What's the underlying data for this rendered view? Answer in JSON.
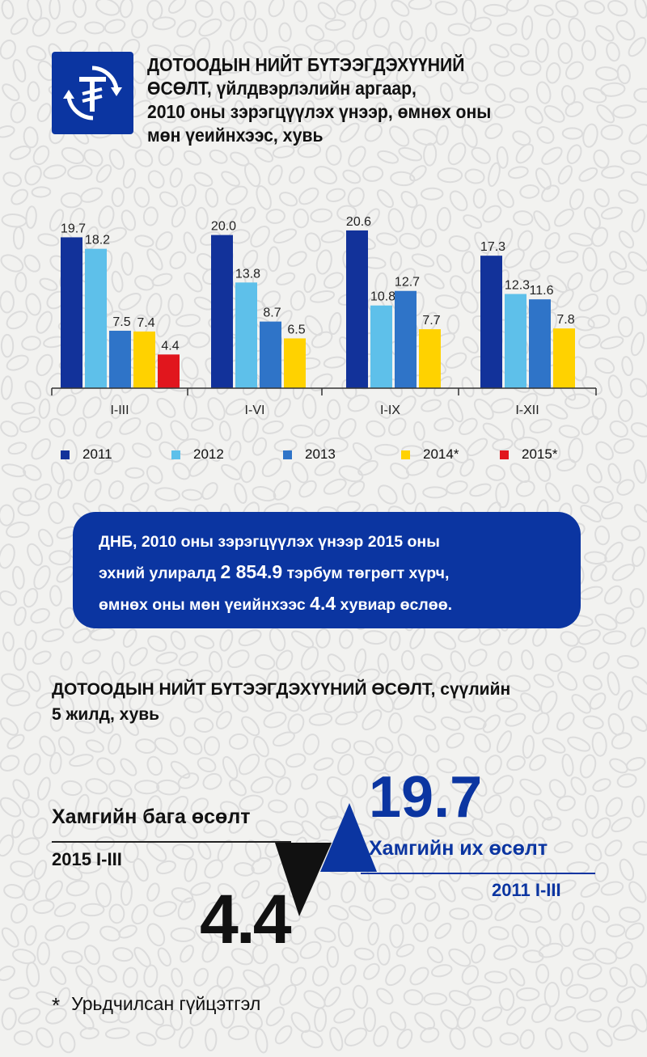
{
  "header": {
    "title_line1": "ДОТООДЫН НИЙТ БҮТЭЭГДЭХҮҮНИЙ",
    "title_line2": "ӨСӨЛТ, үйлдвэрлэлийн аргаар,",
    "title_line3": "2010 оны зэрэгцүүлэх үнээр, өмнөх оны",
    "title_line4": "мөн үеийнхээс, хувь",
    "logo_icon": "tugrik-cycle-icon"
  },
  "chart_data": {
    "type": "bar",
    "categories": [
      "I-III",
      "I-VI",
      "I-IX",
      "I-XII"
    ],
    "series": [
      {
        "name": "2011",
        "color": "#12329a",
        "values": [
          19.7,
          20.0,
          20.6,
          17.3
        ]
      },
      {
        "name": "2012",
        "color": "#5ec0ea",
        "values": [
          18.2,
          13.8,
          10.8,
          12.3
        ]
      },
      {
        "name": "2013",
        "color": "#2f74c8",
        "values": [
          7.5,
          8.7,
          12.7,
          11.6
        ]
      },
      {
        "name": "2014*",
        "color": "#ffd200",
        "values": [
          7.4,
          6.5,
          7.7,
          7.8
        ]
      },
      {
        "name": "2015*",
        "color": "#e1161d",
        "values": [
          4.4,
          null,
          null,
          null
        ]
      }
    ],
    "ylim": [
      0,
      21.5
    ],
    "legend_position": "bottom",
    "grid": false
  },
  "callout": {
    "line1": "ДНБ, 2010 оны зэрэгцүүлэх үнээр 2015 оны",
    "line2_pre": "эхний улиралд ",
    "line2_big": "2 854.9",
    "line2_post": " тэрбум төгрөгт хүрч,",
    "line3_pre": "өмнөх оны мөн үеийнхээс ",
    "line3_big": "4.4",
    "line3_post": " хувиар өслөө."
  },
  "section2": {
    "title_line1": "ДОТООДЫН НИЙТ БҮТЭЭГДЭХҮҮНИЙ ӨСӨЛТ, сүүлийн",
    "title_line2": "5 жилд, хувь",
    "min_label": "Хамгийн бага өсөлт",
    "min_period": "2015 I-III",
    "min_value": "4.4",
    "max_label": "Хамгийн их өсөлт",
    "max_period": "2011 I-III",
    "max_value": "19.7"
  },
  "footnote": {
    "star": "*",
    "text": "Урьдчилсан гүйцэтгэл"
  },
  "colors": {
    "brand_blue": "#0b35a1"
  }
}
